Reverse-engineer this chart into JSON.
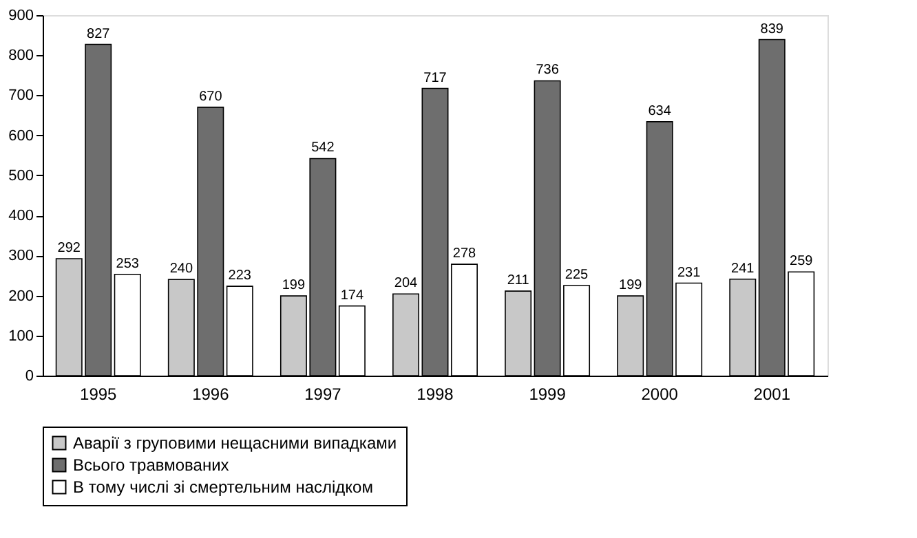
{
  "chart_data": {
    "type": "bar",
    "categories": [
      "1995",
      "1996",
      "1997",
      "1998",
      "1999",
      "2000",
      "2001"
    ],
    "series": [
      {
        "name": "Аварії з груповими нещасними випадками",
        "color": "#c8c8c8",
        "values": [
          292,
          240,
          199,
          204,
          211,
          199,
          241
        ]
      },
      {
        "name": "Всього травмованих",
        "color": "#6e6e6e",
        "values": [
          827,
          670,
          542,
          717,
          736,
          634,
          839
        ]
      },
      {
        "name": "В тому числі зі смертельним наслідком",
        "color": "#ffffff",
        "values": [
          253,
          223,
          174,
          278,
          225,
          231,
          259
        ]
      }
    ],
    "ylim": [
      0,
      900
    ],
    "yticks": [
      0,
      100,
      200,
      300,
      400,
      500,
      600,
      700,
      800,
      900
    ],
    "data_labels": true,
    "legend": "bottom"
  }
}
